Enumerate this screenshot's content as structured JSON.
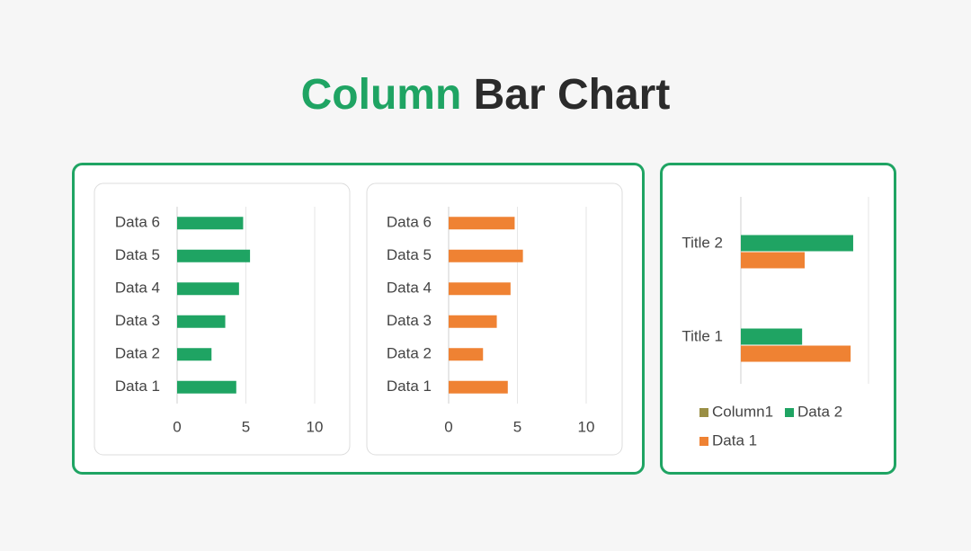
{
  "title": {
    "highlight": "Column",
    "rest": "Bar Chart"
  },
  "chart_data": [
    {
      "type": "bar",
      "orientation": "horizontal",
      "categories": [
        "Data 1",
        "Data 2",
        "Data 3",
        "Data 4",
        "Data 5",
        "Data 6"
      ],
      "values": [
        4.3,
        2.5,
        3.5,
        4.5,
        5.3,
        4.8
      ],
      "color": "#1fa463",
      "xlim": [
        0,
        10
      ],
      "xticks": [
        0,
        5,
        10
      ],
      "grid": true
    },
    {
      "type": "bar",
      "orientation": "horizontal",
      "categories": [
        "Data 1",
        "Data 2",
        "Data 3",
        "Data 4",
        "Data 5",
        "Data 6"
      ],
      "values": [
        4.3,
        2.5,
        3.5,
        4.5,
        5.4,
        4.8
      ],
      "color": "#ef8233",
      "xlim": [
        0,
        10
      ],
      "xticks": [
        0,
        5,
        10
      ],
      "grid": true
    },
    {
      "type": "bar",
      "orientation": "horizontal",
      "categories": [
        "Title 1",
        "Title 2"
      ],
      "series": [
        {
          "name": "Column1",
          "color": "#9a8f45",
          "values": [
            null,
            null
          ]
        },
        {
          "name": "Data 2",
          "color": "#1fa463",
          "values": [
            2.4,
            4.4
          ]
        },
        {
          "name": "Data 1",
          "color": "#ef8233",
          "values": [
            4.3,
            2.5
          ]
        }
      ],
      "xlim": [
        0,
        5
      ],
      "grid": true,
      "legend": "bottom"
    }
  ]
}
